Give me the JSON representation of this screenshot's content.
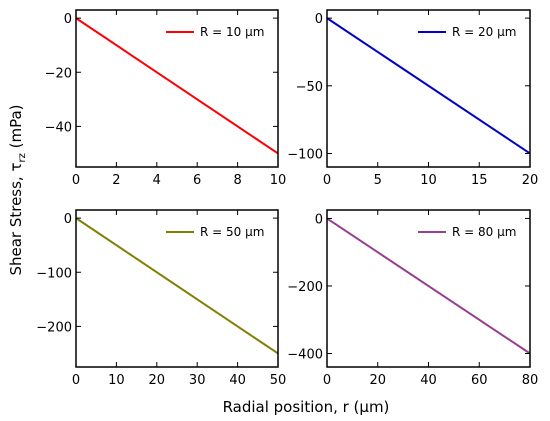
{
  "chart_data": [
    {
      "type": "line",
      "legend": "R = 10 μm",
      "color": "#ff0000",
      "x": [
        0,
        10
      ],
      "y": [
        0,
        -50
      ],
      "xlim": [
        0,
        10
      ],
      "ylim": [
        -55,
        3
      ],
      "xticks": [
        "0",
        "2",
        "4",
        "6",
        "8",
        "10"
      ],
      "xtick_values": [
        0,
        2,
        4,
        6,
        8,
        10
      ],
      "yticks": [
        "0",
        "−20",
        "−40"
      ],
      "ytick_values": [
        0,
        -20,
        -40
      ],
      "legend_position": "top-right"
    },
    {
      "type": "line",
      "legend": "R = 20 μm",
      "color": "#0000cc",
      "x": [
        0,
        20
      ],
      "y": [
        0,
        -100
      ],
      "xlim": [
        0,
        20
      ],
      "ylim": [
        -110,
        6
      ],
      "xticks": [
        "0",
        "5",
        "10",
        "15",
        "20"
      ],
      "xtick_values": [
        0,
        5,
        10,
        15,
        20
      ],
      "yticks": [
        "0",
        "−50",
        "−100"
      ],
      "ytick_values": [
        0,
        -50,
        -100
      ],
      "legend_position": "top-right"
    },
    {
      "type": "line",
      "legend": "R = 50 μm",
      "color": "#808000",
      "x": [
        0,
        50
      ],
      "y": [
        0,
        -250
      ],
      "xlim": [
        0,
        50
      ],
      "ylim": [
        -275,
        15
      ],
      "xticks": [
        "0",
        "10",
        "20",
        "30",
        "40",
        "50"
      ],
      "xtick_values": [
        0,
        10,
        20,
        30,
        40,
        50
      ],
      "yticks": [
        "0",
        "−100",
        "−200"
      ],
      "ytick_values": [
        0,
        -100,
        -200
      ],
      "legend_position": "top-right"
    },
    {
      "type": "line",
      "legend": "R = 80 μm",
      "color": "#993d91",
      "x": [
        0,
        80
      ],
      "y": [
        0,
        -400
      ],
      "xlim": [
        0,
        80
      ],
      "ylim": [
        -440,
        25
      ],
      "xticks": [
        "0",
        "20",
        "40",
        "60",
        "80"
      ],
      "xtick_values": [
        0,
        20,
        40,
        60,
        80
      ],
      "yticks": [
        "0",
        "−200",
        "−400"
      ],
      "ytick_values": [
        0,
        -200,
        -400
      ],
      "legend_position": "top-right"
    }
  ],
  "shared_xlabel": "Radial position, r (μm)",
  "shared_ylabel": "Shear Stress, τrz (mPa)",
  "ylabel_parts": {
    "main": "Shear Stress, τ",
    "sub": "rz",
    "unit": " (mPa)"
  }
}
